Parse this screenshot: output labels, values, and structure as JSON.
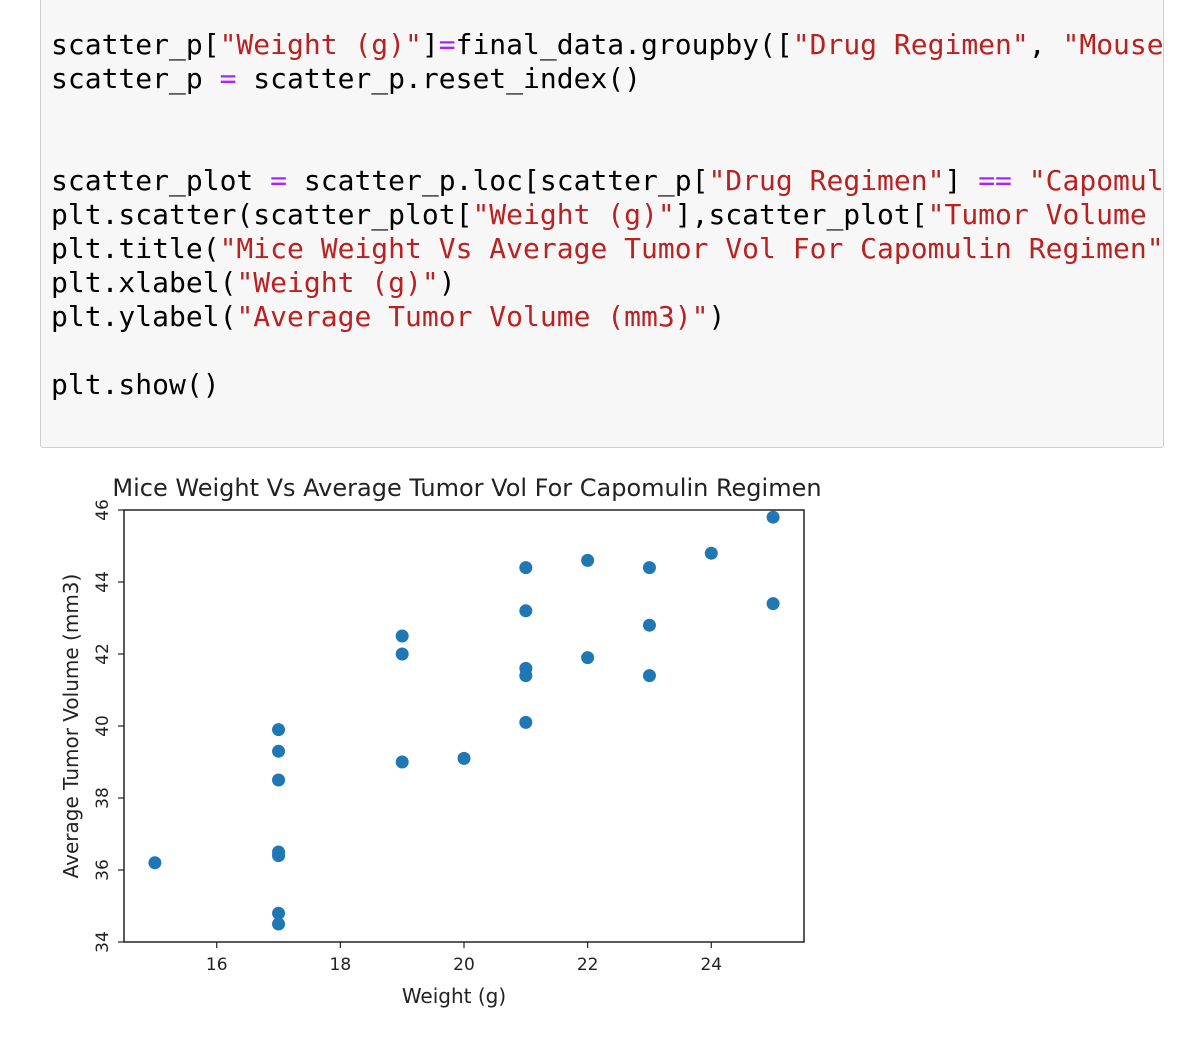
{
  "code_cell": {
    "lines": [
      [
        {
          "t": "scatter_p[",
          "c": ""
        },
        {
          "t": "\"Weight (g)\"",
          "c": "str"
        },
        {
          "t": "]",
          "c": ""
        },
        {
          "t": "=",
          "c": "op"
        },
        {
          "t": "final_data.groupby([",
          "c": ""
        },
        {
          "t": "\"Drug Regimen\"",
          "c": "str"
        },
        {
          "t": ", ",
          "c": ""
        },
        {
          "t": "\"Mouse",
          "c": "str"
        }
      ],
      [
        {
          "t": "scatter_p ",
          "c": ""
        },
        {
          "t": "=",
          "c": "op"
        },
        {
          "t": " scatter_p.reset_index()",
          "c": ""
        }
      ],
      [],
      [],
      [
        {
          "t": "scatter_plot ",
          "c": ""
        },
        {
          "t": "=",
          "c": "op"
        },
        {
          "t": " scatter_p.loc[scatter_p[",
          "c": ""
        },
        {
          "t": "\"Drug Regimen\"",
          "c": "str"
        },
        {
          "t": "] ",
          "c": ""
        },
        {
          "t": "==",
          "c": "op"
        },
        {
          "t": " ",
          "c": ""
        },
        {
          "t": "\"Capomul",
          "c": "str"
        }
      ],
      [
        {
          "t": "plt.scatter(scatter_plot[",
          "c": ""
        },
        {
          "t": "\"Weight (g)\"",
          "c": "str"
        },
        {
          "t": "],scatter_plot[",
          "c": ""
        },
        {
          "t": "\"Tumor Volume",
          "c": "str"
        }
      ],
      [
        {
          "t": "plt.title(",
          "c": ""
        },
        {
          "t": "\"Mice Weight Vs Average Tumor Vol For Capomulin Regimen\"",
          "c": "str"
        }
      ],
      [
        {
          "t": "plt.xlabel(",
          "c": ""
        },
        {
          "t": "\"Weight (g)\"",
          "c": "str"
        },
        {
          "t": ")",
          "c": ""
        }
      ],
      [
        {
          "t": "plt.ylabel(",
          "c": ""
        },
        {
          "t": "\"Average Tumor Volume (mm3)\"",
          "c": "str"
        },
        {
          "t": ")",
          "c": ""
        }
      ],
      [],
      [
        {
          "t": "plt.show()",
          "c": ""
        }
      ]
    ]
  },
  "chart_data": {
    "type": "scatter",
    "title": "Mice Weight Vs Average Tumor Vol For Capomulin Regimen",
    "xlabel": "Weight (g)",
    "ylabel": "Average Tumor Volume (mm3)",
    "xlim": [
      14.5,
      25.5
    ],
    "ylim": [
      34,
      46
    ],
    "xticks": [
      16,
      18,
      20,
      22,
      24
    ],
    "yticks": [
      34,
      36,
      38,
      40,
      42,
      44,
      46
    ],
    "grid": false,
    "color": "#1f77b4",
    "points": [
      {
        "x": 15,
        "y": 36.2
      },
      {
        "x": 17,
        "y": 34.5
      },
      {
        "x": 17,
        "y": 34.8
      },
      {
        "x": 17,
        "y": 36.4
      },
      {
        "x": 17,
        "y": 36.5
      },
      {
        "x": 17,
        "y": 38.5
      },
      {
        "x": 17,
        "y": 39.3
      },
      {
        "x": 17,
        "y": 39.9
      },
      {
        "x": 19,
        "y": 39.0
      },
      {
        "x": 19,
        "y": 42.0
      },
      {
        "x": 19,
        "y": 42.5
      },
      {
        "x": 20,
        "y": 39.1
      },
      {
        "x": 21,
        "y": 40.1
      },
      {
        "x": 21,
        "y": 41.4
      },
      {
        "x": 21,
        "y": 41.6
      },
      {
        "x": 21,
        "y": 43.2
      },
      {
        "x": 21,
        "y": 44.4
      },
      {
        "x": 22,
        "y": 41.9
      },
      {
        "x": 22,
        "y": 44.6
      },
      {
        "x": 23,
        "y": 41.4
      },
      {
        "x": 23,
        "y": 42.8
      },
      {
        "x": 23,
        "y": 44.4
      },
      {
        "x": 24,
        "y": 44.8
      },
      {
        "x": 25,
        "y": 43.4
      },
      {
        "x": 25,
        "y": 45.8
      }
    ]
  }
}
